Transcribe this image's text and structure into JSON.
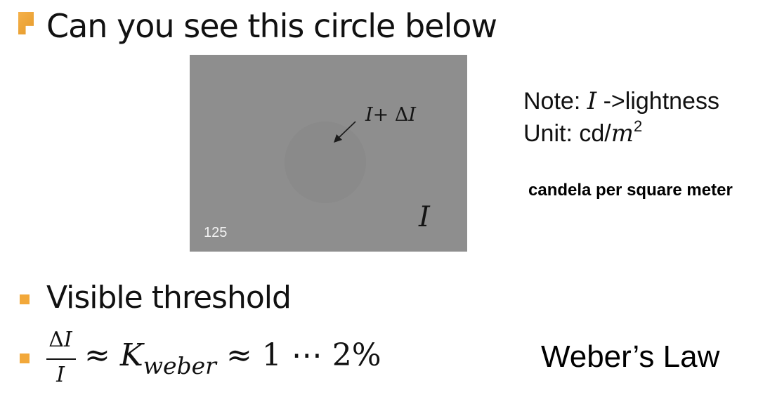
{
  "slide": {
    "heading": "Can you see this circle below",
    "stimulus": {
      "background_value": "125",
      "background_label": "I",
      "circle_label_main": "I",
      "circle_label_op": "+ Δ",
      "circle_label_var": "I",
      "background_color": "#8e8e8e",
      "circle_color": "#8a8a8a"
    },
    "note": {
      "line1_prefix": "Note: ",
      "line1_var": "I",
      "line1_suffix": " ->lightness",
      "line2_prefix": "Unit: cd/",
      "line2_var": "m",
      "line2_exp": "2",
      "unit_explanation": "candela per square meter"
    },
    "bullet1": "Visible threshold",
    "formula": {
      "num_delta": "Δ",
      "num_var": "I",
      "den_var": "I",
      "approx1": " ≈ ",
      "k": "K",
      "k_sub": "weber",
      "approx2": " ≈ 1 ⋯ 2%"
    },
    "law_name": "Weber’s Law",
    "accent_color": "#f2a83a"
  }
}
